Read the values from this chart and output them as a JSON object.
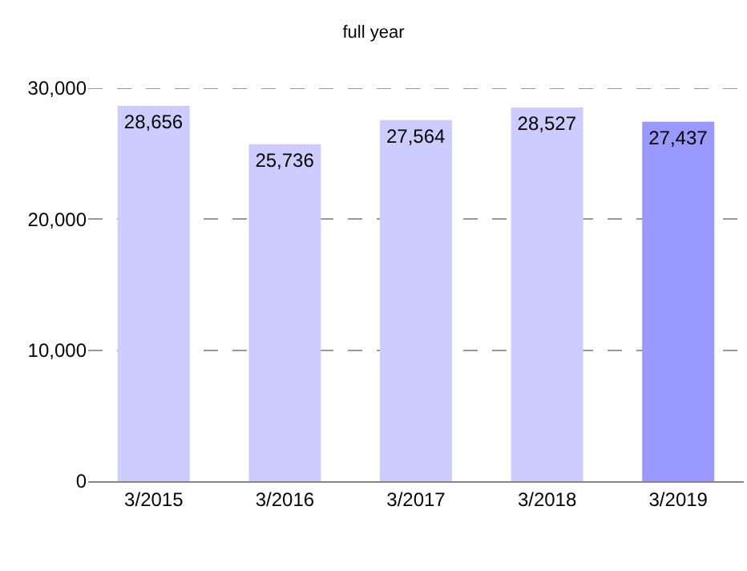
{
  "chart_data": {
    "type": "bar",
    "title": "full year",
    "categories": [
      "3/2015",
      "3/2016",
      "3/2017",
      "3/2018",
      "3/2019"
    ],
    "values": [
      28656,
      25736,
      27564,
      28527,
      27437
    ],
    "colors": [
      "#ccccff",
      "#ccccff",
      "#ccccff",
      "#ccccff",
      "#9999ff"
    ],
    "ylim": [
      0,
      30000
    ],
    "yticks": [
      0,
      {
        "value": 10000,
        "label": "10,000"
      },
      {
        "value": 20000,
        "label": "20,000"
      },
      {
        "value": 30000,
        "label": "30,000"
      }
    ],
    "value_labels": [
      "28,656",
      "25,736",
      "27,564",
      "28,527",
      "27,437"
    ],
    "grid": "y"
  }
}
